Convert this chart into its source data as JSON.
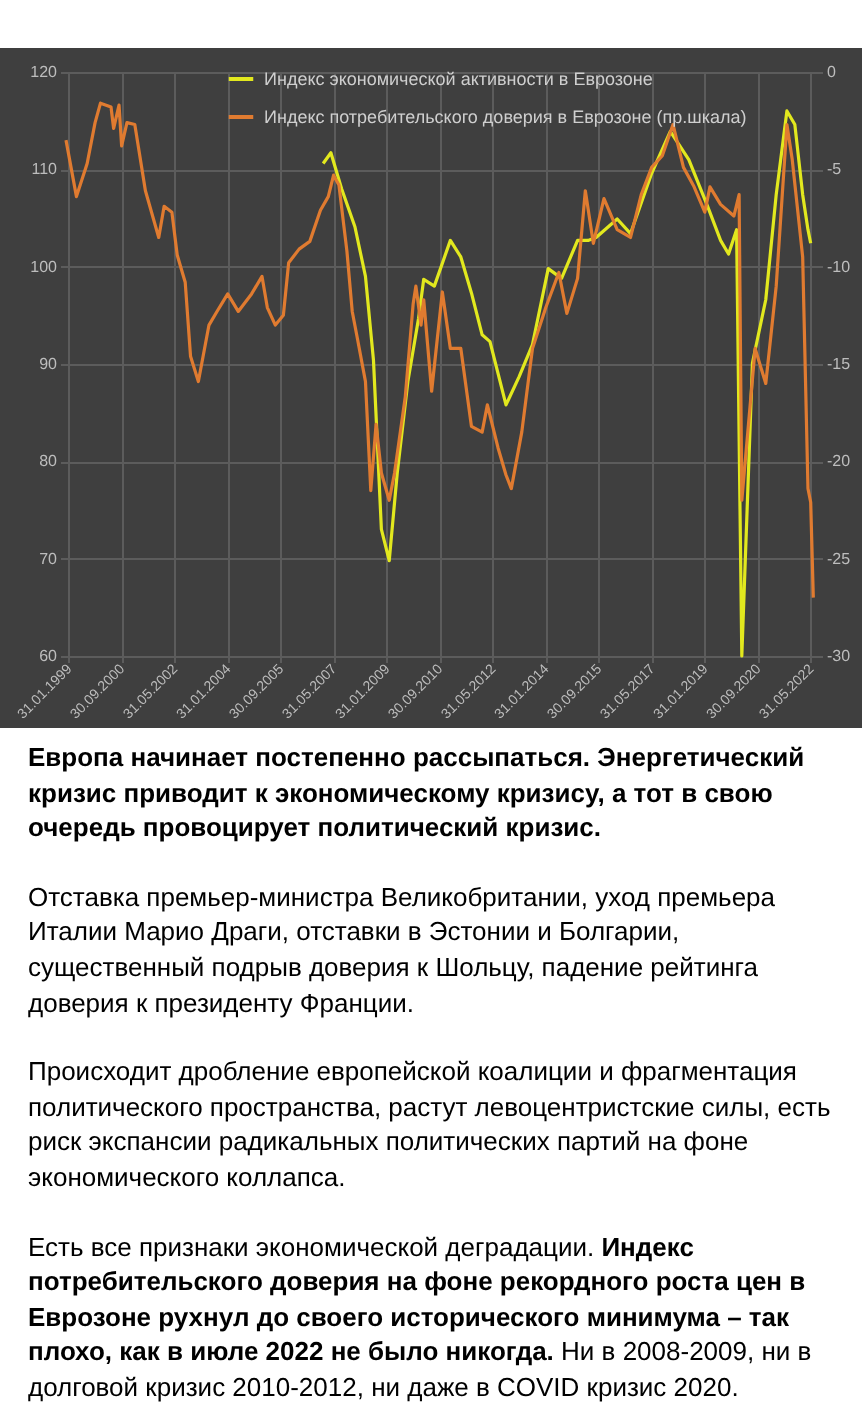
{
  "chart_data": {
    "type": "line",
    "xlim": [
      "1999-01",
      "2022-08"
    ],
    "xticks": [
      {
        "value": "1999-01-31",
        "label": "31.01.1999"
      },
      {
        "value": "2000-09-30",
        "label": "30.09.2000"
      },
      {
        "value": "2002-05-31",
        "label": "31.05.2002"
      },
      {
        "value": "2004-01-31",
        "label": "31.01.2004"
      },
      {
        "value": "2005-09-30",
        "label": "30.09.2005"
      },
      {
        "value": "2007-05-31",
        "label": "31.05.2007"
      },
      {
        "value": "2009-01-31",
        "label": "31.01.2009"
      },
      {
        "value": "2010-09-30",
        "label": "30.09.2010"
      },
      {
        "value": "2012-05-31",
        "label": "31.05.2012"
      },
      {
        "value": "2014-01-31",
        "label": "31.01.2014"
      },
      {
        "value": "2015-09-30",
        "label": "30.09.2015"
      },
      {
        "value": "2017-05-31",
        "label": "31.05.2017"
      },
      {
        "value": "2019-01-31",
        "label": "31.01.2019"
      },
      {
        "value": "2020-09-30",
        "label": "30.09.2020"
      },
      {
        "value": "2022-05-31",
        "label": "31.05.2022"
      }
    ],
    "ylim": [
      60,
      120
    ],
    "yticks": [
      60,
      70,
      80,
      90,
      100,
      110,
      120
    ],
    "y2lim": [
      -30,
      0
    ],
    "y2ticks": [
      -30,
      -25,
      -20,
      -15,
      -10,
      -5,
      0
    ],
    "grid": true,
    "legend": "top",
    "line_style": "solid",
    "series": [
      {
        "name": "Индекс экономической активности в Еврозоне",
        "color": "#e2e81e",
        "x": [
          "2007-02",
          "2007-05",
          "2007-09",
          "2008-02",
          "2008-06",
          "2008-09",
          "2008-12",
          "2009-03",
          "2009-06",
          "2009-10",
          "2010-02",
          "2010-04",
          "2010-08",
          "2011-02",
          "2011-06",
          "2011-10",
          "2012-02",
          "2012-05",
          "2012-11",
          "2013-04",
          "2013-09",
          "2014-03",
          "2014-08",
          "2015-02",
          "2015-06",
          "2015-09",
          "2016-05",
          "2016-10",
          "2017-06",
          "2018-01",
          "2018-08",
          "2019-03",
          "2019-08",
          "2019-11",
          "2020-02",
          "2020-04",
          "2020-08",
          "2021-01",
          "2021-05",
          "2021-09",
          "2021-12",
          "2022-03",
          "2022-05",
          "2022-06"
        ],
        "values": [
          110.6,
          111.7,
          108,
          104.1,
          99,
          90.4,
          73,
          69.8,
          78.8,
          88.2,
          94.7,
          98.7,
          98,
          102.7,
          101,
          97.3,
          93,
          92.3,
          85.8,
          88.7,
          92,
          99.8,
          98.8,
          102.7,
          102.7,
          103,
          104.9,
          103.4,
          109.6,
          113.9,
          111,
          106.3,
          102.7,
          101.3,
          103.8,
          60,
          90.1,
          96.6,
          107.4,
          116,
          114.6,
          107.4,
          103.8,
          102.4
        ]
      },
      {
        "name": "Индекс потребительского доверия в Еврозоне (пр.шкала)",
        "color": "#e07b30",
        "axis": "y2",
        "x": [
          "1999-01",
          "1999-05",
          "1999-09",
          "1999-12",
          "2000-02",
          "2000-06",
          "2000-07",
          "2000-09",
          "2000-10",
          "2000-12",
          "2001-03",
          "2001-07",
          "2001-12",
          "2002-02",
          "2002-05",
          "2002-07",
          "2002-10",
          "2002-12",
          "2003-03",
          "2003-07",
          "2003-10",
          "2004-02",
          "2004-06",
          "2004-11",
          "2005-03",
          "2005-05",
          "2005-08",
          "2005-11",
          "2006-01",
          "2006-05",
          "2006-09",
          "2007-01",
          "2007-04",
          "2007-06",
          "2007-08",
          "2007-11",
          "2008-01",
          "2008-03",
          "2008-06",
          "2008-08",
          "2008-10",
          "2008-12",
          "2009-03",
          "2009-05",
          "2009-09",
          "2009-12",
          "2010-01",
          "2010-03",
          "2010-04",
          "2010-07",
          "2010-11",
          "2011-02",
          "2011-06",
          "2011-10",
          "2012-02",
          "2012-04",
          "2012-08",
          "2012-11",
          "2013-01",
          "2013-05",
          "2013-09",
          "2014-02",
          "2014-07",
          "2014-10",
          "2015-02",
          "2015-05",
          "2015-08",
          "2015-12",
          "2016-05",
          "2016-10",
          "2017-02",
          "2017-06",
          "2017-10",
          "2018-02",
          "2018-06",
          "2018-10",
          "2019-02",
          "2019-04",
          "2019-08",
          "2020-01",
          "2020-03",
          "2020-04",
          "2020-09",
          "2021-01",
          "2021-05",
          "2021-09",
          "2021-11",
          "2022-03",
          "2022-05",
          "2022-06",
          "2022-07"
        ],
        "values": [
          -3.5,
          -6.4,
          -4.7,
          -2.6,
          -1.6,
          -1.8,
          -2.9,
          -1.7,
          -3.8,
          -2.6,
          -2.7,
          -6.1,
          -8.5,
          -6.9,
          -7.2,
          -9.4,
          -10.8,
          -14.6,
          -15.9,
          -13,
          -12.3,
          -11.4,
          -12.3,
          -11.4,
          -10.5,
          -12.1,
          -13,
          -12.5,
          -9.8,
          -9.1,
          -8.7,
          -7.1,
          -6.4,
          -5.3,
          -5.8,
          -9.2,
          -12.3,
          -13.7,
          -15.9,
          -21.5,
          -18.1,
          -20.6,
          -22,
          -20.6,
          -16.7,
          -11.9,
          -11,
          -13,
          -11.7,
          -16.4,
          -11.3,
          -14.2,
          -14.2,
          -18.2,
          -18.5,
          -17.1,
          -19.3,
          -20.7,
          -21.4,
          -18.5,
          -14.2,
          -12.1,
          -10.3,
          -12.4,
          -10.6,
          -6.1,
          -8.8,
          -6.5,
          -8.1,
          -8.5,
          -6.3,
          -4.9,
          -4.3,
          -2.7,
          -4.9,
          -5.9,
          -7.2,
          -5.9,
          -6.8,
          -7.4,
          -6.3,
          -22,
          -14.2,
          -16,
          -11,
          -2.7,
          -4.5,
          -9.5,
          -21.4,
          -22.1,
          -27
        ]
      }
    ],
    "annotations": [
      "Европа начинает постепенно рассыпаться. Энергетический кризис приводит к экономическому кризису, а тот в свою очередь провоцирует политический кризис.",
      "Отставка премьер-министра Великобритании, уход премьера Италии Марио Драги, отставки в Эстонии и Болгарии, существенный подрыв доверия к Шольцу, падение рейтинга доверия к президенту Франции.",
      "Происходит дробление европейской коалиции и фрагментация политического пространства, растут левоцентристские силы, есть риск экспансии радикальных политических партий на фоне экономического коллапса.",
      "Есть все признаки экономической деградации.",
      "Индекс потребительского доверия на фоне рекордного роста цен в Еврозоне рухнул до своего исторического минимума – так плохо, как в июле 2022 не было никогда.",
      "Ни в 2008-2009, ни в долговой кризис 2010-2012, ни даже в COVID кризис 2020."
    ]
  }
}
